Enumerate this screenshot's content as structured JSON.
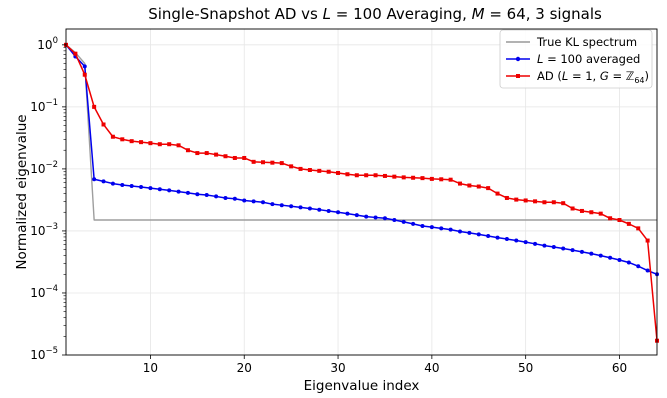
{
  "chart_data": {
    "type": "line",
    "title": "Single-Snapshot AD vs L = 100 Averaging,  M = 64,  3 signals",
    "xlabel": "Eigenvalue index",
    "ylabel": "Normalized eigenvalue",
    "xlim": [
      1,
      64
    ],
    "ylim": [
      1e-05,
      1.8
    ],
    "yscale": "log",
    "grid": true,
    "legend_position": "top-right",
    "x_ticks": [
      10,
      20,
      30,
      40,
      50,
      60
    ],
    "x_tick_labels": [
      "10",
      "20",
      "30",
      "40",
      "50",
      "60"
    ],
    "y_ticks": [
      1e-05,
      0.0001,
      0.001,
      0.01,
      0.1,
      1
    ],
    "y_tick_labels": [
      {
        "base": "10",
        "exp": "−5"
      },
      {
        "base": "10",
        "exp": "−4"
      },
      {
        "base": "10",
        "exp": "−3"
      },
      {
        "base": "10",
        "exp": "−2"
      },
      {
        "base": "10",
        "exp": "−1"
      },
      {
        "base": "10",
        "exp": "0"
      }
    ],
    "x": [
      1,
      2,
      3,
      4,
      5,
      6,
      7,
      8,
      9,
      10,
      11,
      12,
      13,
      14,
      15,
      16,
      17,
      18,
      19,
      20,
      21,
      22,
      23,
      24,
      25,
      26,
      27,
      28,
      29,
      30,
      31,
      32,
      33,
      34,
      35,
      36,
      37,
      38,
      39,
      40,
      41,
      42,
      43,
      44,
      45,
      46,
      47,
      48,
      49,
      50,
      51,
      52,
      53,
      54,
      55,
      56,
      57,
      58,
      59,
      60,
      61,
      62,
      63,
      64
    ],
    "series": [
      {
        "name": "True KL spectrum",
        "color": "#999999",
        "marker": "none",
        "values": [
          1.0,
          0.75,
          0.5,
          0.0015,
          0.0015,
          0.0015,
          0.0015,
          0.0015,
          0.0015,
          0.0015,
          0.0015,
          0.0015,
          0.0015,
          0.0015,
          0.0015,
          0.0015,
          0.0015,
          0.0015,
          0.0015,
          0.0015,
          0.0015,
          0.0015,
          0.0015,
          0.0015,
          0.0015,
          0.0015,
          0.0015,
          0.0015,
          0.0015,
          0.0015,
          0.0015,
          0.0015,
          0.0015,
          0.0015,
          0.0015,
          0.0015,
          0.0015,
          0.0015,
          0.0015,
          0.0015,
          0.0015,
          0.0015,
          0.0015,
          0.0015,
          0.0015,
          0.0015,
          0.0015,
          0.0015,
          0.0015,
          0.0015,
          0.0015,
          0.0015,
          0.0015,
          0.0015,
          0.0015,
          0.0015,
          0.0015,
          0.0015,
          0.0015,
          0.0015,
          0.0015,
          0.0015,
          0.0015,
          0.0015
        ]
      },
      {
        "name": "L = 100 averaged",
        "color": "#0000ee",
        "marker": "circle",
        "values": [
          1.0,
          0.65,
          0.45,
          0.0068,
          0.0063,
          0.0058,
          0.0055,
          0.0053,
          0.0051,
          0.0049,
          0.0047,
          0.0045,
          0.0043,
          0.0041,
          0.0039,
          0.0038,
          0.0036,
          0.0034,
          0.0033,
          0.0031,
          0.003,
          0.0029,
          0.0027,
          0.0026,
          0.0025,
          0.0024,
          0.0023,
          0.0022,
          0.0021,
          0.002,
          0.0019,
          0.0018,
          0.0017,
          0.00165,
          0.0016,
          0.0015,
          0.0014,
          0.0013,
          0.0012,
          0.00115,
          0.0011,
          0.00105,
          0.00098,
          0.00093,
          0.00088,
          0.00083,
          0.00078,
          0.00074,
          0.0007,
          0.00066,
          0.00062,
          0.00058,
          0.00055,
          0.00052,
          0.00049,
          0.00046,
          0.00043,
          0.0004,
          0.00037,
          0.00034,
          0.00031,
          0.00027,
          0.00023,
          0.0002
        ]
      },
      {
        "name": "AD (L = 1, G = ℤ64)",
        "color": "#ee0000",
        "marker": "square",
        "values": [
          1.0,
          0.72,
          0.33,
          0.1,
          0.052,
          0.033,
          0.03,
          0.028,
          0.027,
          0.026,
          0.025,
          0.025,
          0.024,
          0.02,
          0.018,
          0.018,
          0.017,
          0.016,
          0.015,
          0.015,
          0.013,
          0.0128,
          0.0126,
          0.0124,
          0.011,
          0.01,
          0.0096,
          0.0093,
          0.009,
          0.0086,
          0.0082,
          0.0079,
          0.0079,
          0.0079,
          0.0077,
          0.0075,
          0.0073,
          0.0072,
          0.0071,
          0.0069,
          0.0068,
          0.0067,
          0.0058,
          0.0054,
          0.0052,
          0.0049,
          0.004,
          0.0034,
          0.0032,
          0.0031,
          0.003,
          0.0029,
          0.0029,
          0.0028,
          0.0023,
          0.0021,
          0.002,
          0.0019,
          0.0016,
          0.0015,
          0.0013,
          0.0011,
          0.0007,
          1.7e-05
        ]
      }
    ],
    "legend": [
      {
        "label_main": "True KL spectrum"
      },
      {
        "label_math": true,
        "label_var": "L",
        "label_rest": " = 100 averaged"
      },
      {
        "label_math2": true,
        "label_prefix": "AD (",
        "label_a": "L",
        "label_b": " = 1, ",
        "label_c": "G",
        "label_d": " = ",
        "label_e": "ℤ",
        "label_f": "64",
        "label_g": ")"
      }
    ]
  },
  "title_parts": {
    "p1": "Single-Snapshot AD vs ",
    "p2": "L",
    "p3": " = 100 Averaging,  ",
    "p4": "M",
    "p5": " = 64,  3 signals"
  }
}
